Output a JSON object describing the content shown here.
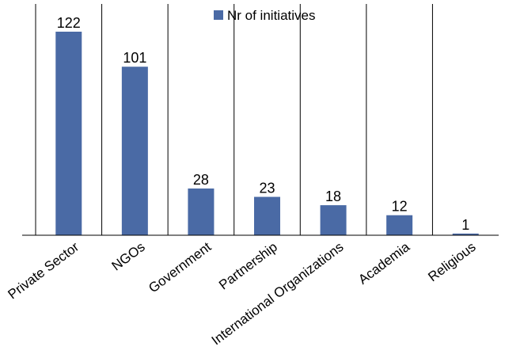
{
  "chart_data": {
    "type": "bar",
    "categories": [
      "Private Sector",
      "NGOs",
      "Government",
      "Partnership",
      "International Organizations",
      "Academia",
      "Religious"
    ],
    "series": [
      {
        "name": "Nr of initiatives",
        "values": [
          122,
          101,
          28,
          23,
          18,
          12,
          1
        ]
      }
    ],
    "data_labels": [
      "122",
      "101",
      "28",
      "23",
      "18",
      "12",
      "1"
    ],
    "ylim": [
      0,
      130
    ],
    "grid": "vertical separators between categories",
    "legend_position": "top-center",
    "colors": {
      "bar": "#4A6AA5",
      "axis": "#000000",
      "separator": "#000000"
    }
  }
}
